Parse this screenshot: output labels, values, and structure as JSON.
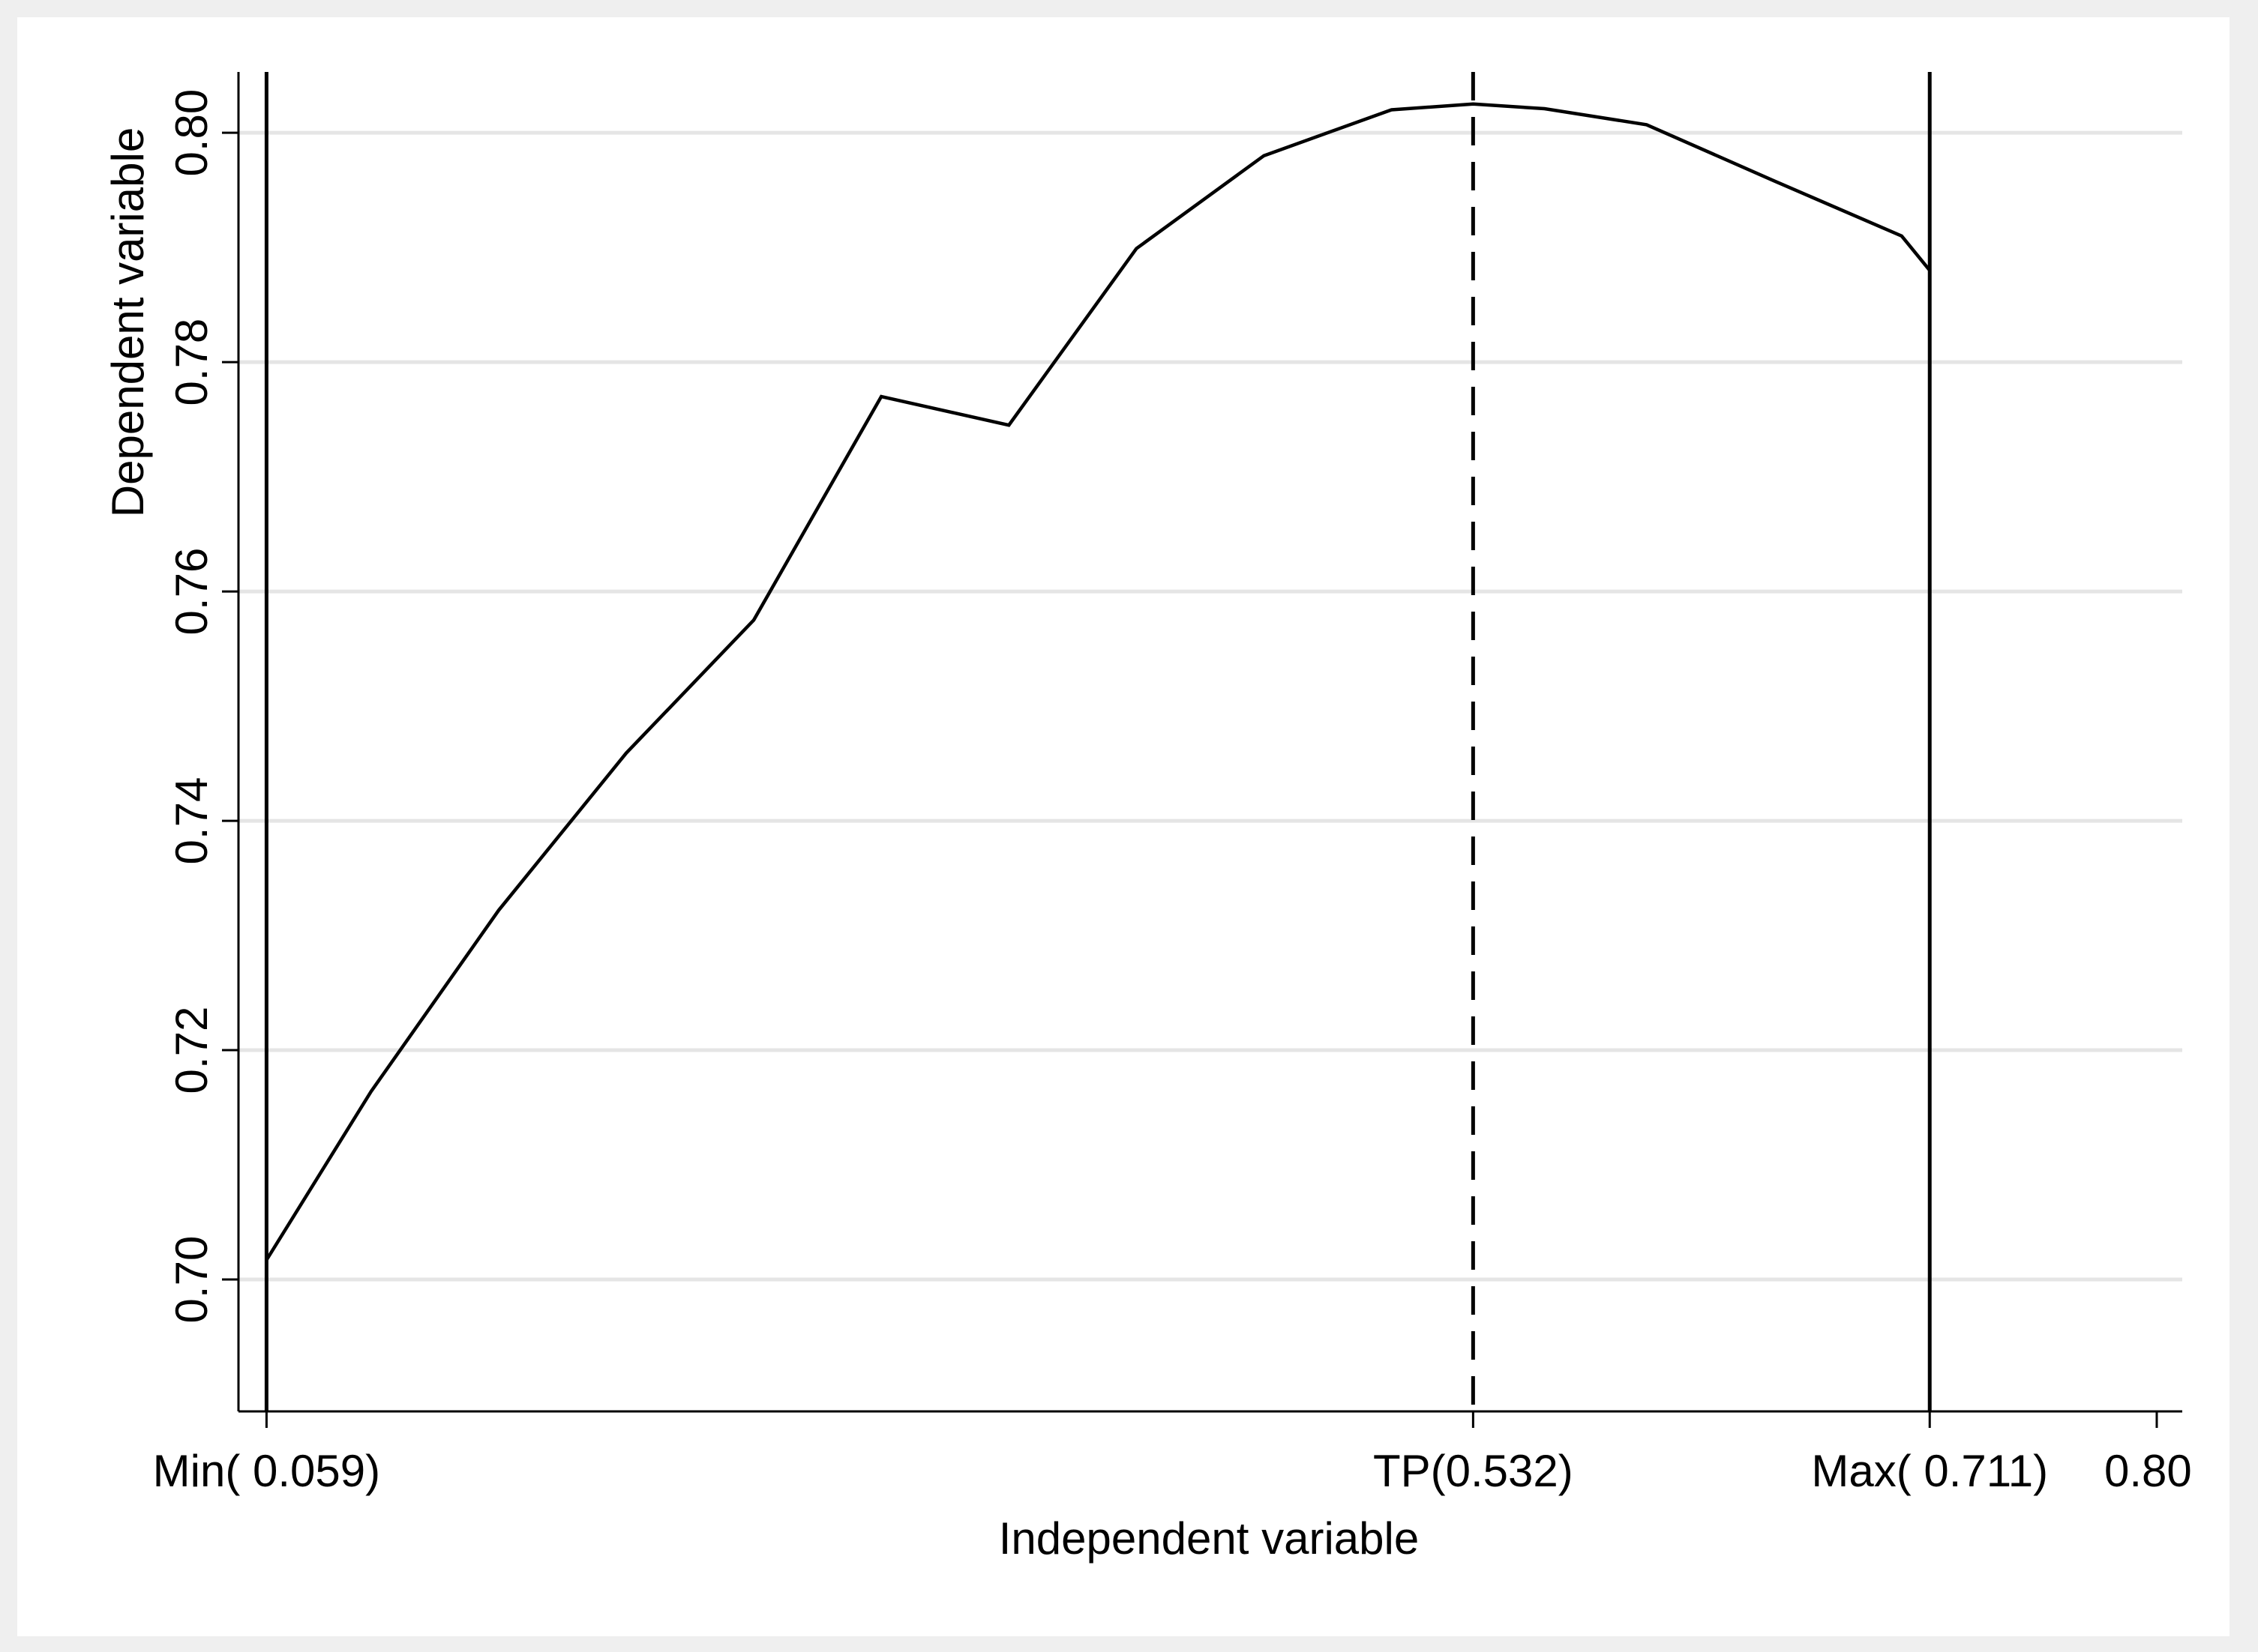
{
  "chart_data": {
    "type": "line",
    "title": "",
    "xlabel": "Independent variable",
    "ylabel": "Dependent variable",
    "xlim": [
      0.048,
      0.81
    ],
    "ylim": [
      0.6885,
      0.8053
    ],
    "y_ticks": [
      {
        "value": 0.7,
        "label": "0.70"
      },
      {
        "value": 0.72,
        "label": "0.72"
      },
      {
        "value": 0.74,
        "label": "0.74"
      },
      {
        "value": 0.76,
        "label": "0.76"
      },
      {
        "value": 0.78,
        "label": "0.78"
      },
      {
        "value": 0.8,
        "label": "0.80"
      }
    ],
    "x_ticks": [
      {
        "value": 0.059,
        "label": "Min( 0.059)"
      },
      {
        "value": 0.532,
        "label": "TP(0.532)"
      },
      {
        "value": 0.711,
        "label": "Max( 0.711)"
      },
      {
        "value": 0.8,
        "label": "0.80"
      }
    ],
    "grid": true,
    "series": [
      {
        "type": "quadratic-fit",
        "x": [
          0.059,
          0.1,
          0.15,
          0.2,
          0.25,
          0.3,
          0.35,
          0.4,
          0.45,
          0.5,
          0.532,
          0.56,
          0.6,
          0.65,
          0.7,
          0.711
        ],
        "y": [
          0.7017,
          0.7164,
          0.7322,
          0.7459,
          0.7575,
          0.777,
          0.7745,
          0.7899,
          0.798,
          0.802,
          0.8025,
          0.8021,
          0.8007,
          0.7958,
          0.791,
          0.788
        ]
      }
    ],
    "vertical_lines": [
      {
        "x": 0.059,
        "style": "solid"
      },
      {
        "x": 0.532,
        "style": "dashed"
      },
      {
        "x": 0.711,
        "style": "solid"
      }
    ],
    "colors": {
      "background": "#efefef",
      "plot": "#ffffff",
      "grid": "#e5e5e5",
      "line": "#000000"
    }
  }
}
